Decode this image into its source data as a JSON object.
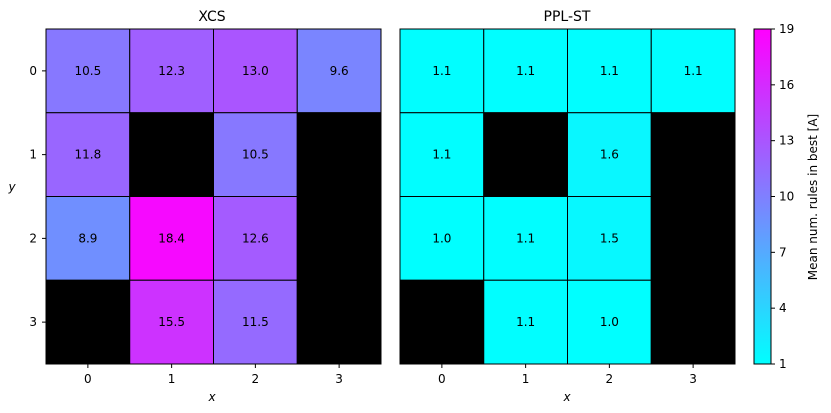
{
  "chart_data": [
    {
      "type": "heatmap",
      "title": "XCS",
      "xlabel": "x",
      "ylabel": "y",
      "x_ticks": [
        "0",
        "1",
        "2",
        "3"
      ],
      "y_ticks": [
        "0",
        "1",
        "2",
        "3"
      ],
      "cells": [
        [
          10.5,
          12.3,
          13.0,
          9.6
        ],
        [
          11.8,
          null,
          10.5,
          null
        ],
        [
          8.9,
          18.4,
          12.6,
          null
        ],
        [
          null,
          15.5,
          11.5,
          null
        ]
      ],
      "labels": [
        [
          "10.5",
          "12.3",
          "13.0",
          "9.6"
        ],
        [
          "11.8",
          "",
          "10.5",
          ""
        ],
        [
          "8.9",
          "18.4",
          "12.6",
          ""
        ],
        [
          "",
          "15.5",
          "11.5",
          ""
        ]
      ],
      "missing_color": "#000000"
    },
    {
      "type": "heatmap",
      "title": "PPL-ST",
      "xlabel": "x",
      "ylabel": "",
      "x_ticks": [
        "0",
        "1",
        "2",
        "3"
      ],
      "y_ticks": [],
      "cells": [
        [
          1.1,
          1.1,
          1.1,
          1.1
        ],
        [
          1.1,
          null,
          1.6,
          null
        ],
        [
          1.0,
          1.1,
          1.5,
          null
        ],
        [
          null,
          1.1,
          1.0,
          null
        ]
      ],
      "labels": [
        [
          "1.1",
          "1.1",
          "1.1",
          "1.1"
        ],
        [
          "1.1",
          "",
          "1.6",
          ""
        ],
        [
          "1.0",
          "1.1",
          "1.5",
          ""
        ],
        [
          "",
          "1.1",
          "1.0",
          ""
        ]
      ],
      "missing_color": "#000000"
    }
  ],
  "colorbar": {
    "label": "Mean num. rules in best [A]",
    "colormap": "cool",
    "vmin": 1,
    "vmax": 19,
    "ticks": [
      "1",
      "4",
      "7",
      "10",
      "13",
      "16",
      "19"
    ],
    "color_low": "#00ffff",
    "color_high": "#ff00ff"
  }
}
